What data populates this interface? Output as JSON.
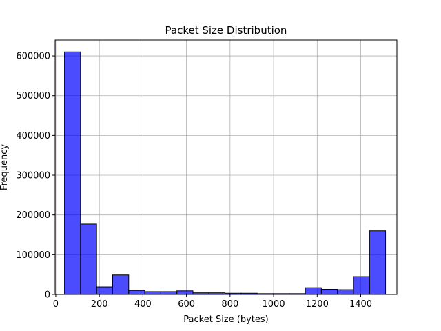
{
  "chart_data": {
    "type": "bar",
    "title": "Packet Size Distribution",
    "xlabel": "Packet Size (bytes)",
    "ylabel": "Frequency",
    "xlim": [
      -3,
      1566
    ],
    "ylim": [
      0,
      640000
    ],
    "xticks": [
      0,
      200,
      400,
      600,
      800,
      1000,
      1200,
      1400
    ],
    "yticks": [
      0,
      100000,
      200000,
      300000,
      400000,
      500000,
      600000
    ],
    "grid": true,
    "bar_color": "#0000ff",
    "bar_alpha": 0.7,
    "edge_color": "#000000",
    "bin_width": 73.7,
    "bins_start": [
      40,
      113.7,
      187.4,
      261.1,
      334.8,
      408.5,
      482.2,
      555.9,
      629.6,
      703.3,
      777,
      850.7,
      924.4,
      998.1,
      1071.8,
      1145.5,
      1219.2,
      1292.9,
      1366.6,
      1440.3
    ],
    "values": [
      610000,
      177000,
      19000,
      49000,
      10000,
      7000,
      7000,
      9000,
      4000,
      4000,
      3000,
      3000,
      2000,
      2000,
      2000,
      17000,
      13000,
      12000,
      45000,
      160000
    ]
  }
}
